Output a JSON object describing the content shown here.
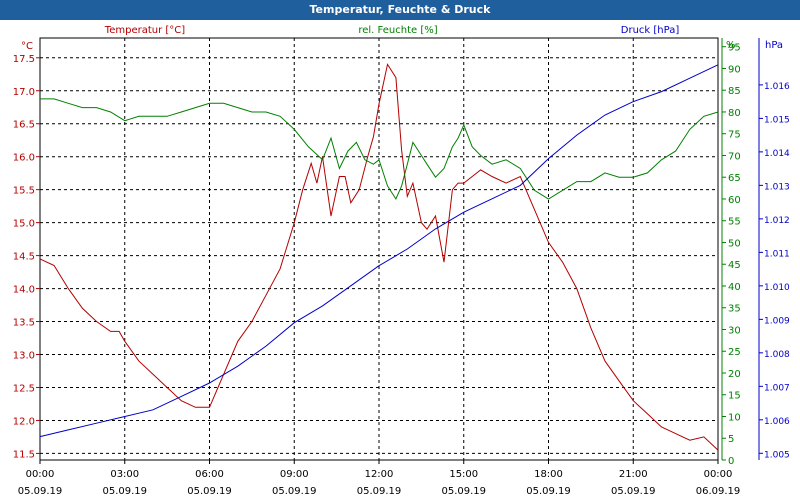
{
  "window": {
    "title": "Temperatur, Feuchte & Druck"
  },
  "colors": {
    "temperature": "#b40000",
    "humidity": "#008000",
    "pressure": "#0000c8",
    "title_bar": "#1f5f9e"
  },
  "chart_data": {
    "type": "line",
    "title": "Temperatur, Feuchte & Druck",
    "grid": true,
    "x_ticks": [
      {
        "time": "00:00",
        "date": "05.09.19"
      },
      {
        "time": "03:00",
        "date": "05.09.19"
      },
      {
        "time": "06:00",
        "date": "05.09.19"
      },
      {
        "time": "09:00",
        "date": "05.09.19"
      },
      {
        "time": "12:00",
        "date": "05.09.19"
      },
      {
        "time": "15:00",
        "date": "05.09.19"
      },
      {
        "time": "18:00",
        "date": "05.09.19"
      },
      {
        "time": "21:00",
        "date": "05.09.19"
      },
      {
        "time": "00:00",
        "date": "06.09.19"
      }
    ],
    "axes": {
      "temperature": {
        "unit": "°C",
        "range": [
          11.4,
          17.8
        ],
        "ticks": [
          "11.5",
          "12.0",
          "12.5",
          "13.0",
          "13.5",
          "14.0",
          "14.5",
          "15.0",
          "15.5",
          "16.0",
          "16.5",
          "17.0",
          "17.5"
        ]
      },
      "humidity": {
        "unit": "%",
        "range": [
          0,
          97
        ],
        "ticks": [
          "0",
          "5",
          "10",
          "15",
          "20",
          "25",
          "30",
          "35",
          "40",
          "45",
          "50",
          "55",
          "60",
          "65",
          "70",
          "75",
          "80",
          "85",
          "90",
          "95"
        ]
      },
      "pressure": {
        "unit": "hPa",
        "range": [
          1.0048,
          1.0174
        ],
        "ticks": [
          "1.005",
          "1.006",
          "1.007",
          "1.008",
          "1.009",
          "1.010",
          "1.011",
          "1.012",
          "1.013",
          "1.014",
          "1.015",
          "1.016"
        ]
      }
    },
    "series": [
      {
        "name": "Temperatur [°C]",
        "axis": "temperature",
        "x": [
          0,
          0.5,
          1,
          1.5,
          2,
          2.5,
          2.8,
          3,
          3.5,
          4,
          4.5,
          5,
          5.5,
          6,
          6.3,
          7,
          7.5,
          8,
          8.5,
          9,
          9.3,
          9.6,
          9.8,
          10,
          10.3,
          10.6,
          10.8,
          11,
          11.3,
          11.6,
          11.8,
          12,
          12.3,
          12.6,
          12.8,
          13,
          13.2,
          13.5,
          13.7,
          14,
          14.3,
          14.6,
          14.8,
          15,
          15.3,
          15.6,
          16,
          16.5,
          17,
          17.5,
          18,
          18.5,
          19,
          19.5,
          20,
          20.5,
          21,
          21.5,
          22,
          22.5,
          23,
          23.5,
          24
        ],
        "y": [
          14.45,
          14.35,
          14.0,
          13.7,
          13.5,
          13.35,
          13.35,
          13.2,
          12.9,
          12.7,
          12.5,
          12.3,
          12.2,
          12.2,
          12.5,
          13.2,
          13.5,
          13.9,
          14.3,
          15.0,
          15.5,
          15.9,
          15.6,
          16.0,
          15.1,
          15.7,
          15.7,
          15.3,
          15.5,
          16.0,
          16.3,
          16.8,
          17.4,
          17.2,
          16.1,
          15.4,
          15.6,
          15.0,
          14.9,
          15.1,
          14.4,
          15.5,
          15.6,
          15.6,
          15.7,
          15.8,
          15.7,
          15.6,
          15.7,
          15.2,
          14.7,
          14.4,
          14.0,
          13.4,
          12.9,
          12.6,
          12.3,
          12.1,
          11.9,
          11.8,
          11.7,
          11.75,
          11.55
        ]
      },
      {
        "name": "rel. Feuchte [%]",
        "axis": "humidity",
        "x": [
          0,
          0.5,
          1,
          1.5,
          2,
          2.5,
          3,
          3.5,
          4,
          4.5,
          5,
          5.5,
          6,
          6.5,
          7,
          7.5,
          8,
          8.5,
          9,
          9.5,
          10,
          10.3,
          10.6,
          10.9,
          11.2,
          11.5,
          11.8,
          12,
          12.3,
          12.6,
          12.8,
          13,
          13.2,
          13.5,
          13.7,
          14,
          14.3,
          14.6,
          14.8,
          15,
          15.3,
          15.6,
          16,
          16.5,
          17,
          17.5,
          18,
          18.5,
          19,
          19.5,
          20,
          20.5,
          21,
          21.5,
          22,
          22.5,
          23,
          23.5,
          24
        ],
        "y": [
          83,
          83,
          82,
          81,
          81,
          80,
          78,
          79,
          79,
          79,
          80,
          81,
          82,
          82,
          81,
          80,
          80,
          79,
          76,
          72,
          69,
          74,
          67,
          71,
          73,
          69,
          68,
          69,
          63,
          60,
          63,
          68,
          73,
          70,
          68,
          65,
          67,
          72,
          74,
          77,
          72,
          70,
          68,
          69,
          67,
          62,
          60,
          62,
          64,
          64,
          66,
          65,
          65,
          66,
          69,
          71,
          76,
          79,
          80
        ]
      },
      {
        "name": "Druck [hPa]",
        "axis": "pressure",
        "x": [
          0,
          1,
          2,
          3,
          4,
          5,
          6,
          7,
          8,
          9,
          10,
          11,
          12,
          13,
          14,
          15,
          16,
          17,
          18,
          19,
          20,
          21,
          22,
          23,
          24
        ],
        "y": [
          1.0055,
          1.0057,
          1.0059,
          1.0061,
          1.0063,
          1.0067,
          1.0071,
          1.0076,
          1.0082,
          1.0089,
          1.0094,
          1.01,
          1.0106,
          1.0111,
          1.0117,
          1.0122,
          1.0126,
          1.013,
          1.0138,
          1.0145,
          1.0151,
          1.0155,
          1.0158,
          1.0162,
          1.0166
        ]
      }
    ]
  }
}
